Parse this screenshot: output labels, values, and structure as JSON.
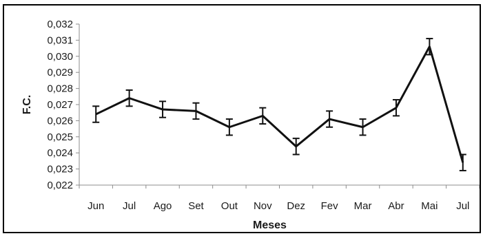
{
  "chart_data": {
    "type": "line",
    "xlabel": "Meses",
    "ylabel": "F.C.",
    "categories": [
      "Jun",
      "Jul",
      "Ago",
      "Set",
      "Out",
      "Nov",
      "Dez",
      "Fev",
      "Mar",
      "Abr",
      "Mai",
      "Jul"
    ],
    "series": [
      {
        "values": [
          0.0264,
          0.0274,
          0.0267,
          0.0266,
          0.0256,
          0.0263,
          0.0244,
          0.0261,
          0.0256,
          0.0268,
          0.0306,
          0.0234
        ],
        "error": [
          0.0005,
          0.0005,
          0.0005,
          0.0005,
          0.0005,
          0.0005,
          0.0005,
          0.0005,
          0.0005,
          0.0005,
          0.0005,
          0.0005
        ],
        "color": "#111111"
      }
    ],
    "ylim": [
      0.022,
      0.032
    ],
    "yticks": [
      "0,022",
      "0,023",
      "0,024",
      "0,025",
      "0,026",
      "0,027",
      "0,028",
      "0,029",
      "0,030",
      "0,031",
      "0,032"
    ],
    "grid": false,
    "legend": "none"
  }
}
